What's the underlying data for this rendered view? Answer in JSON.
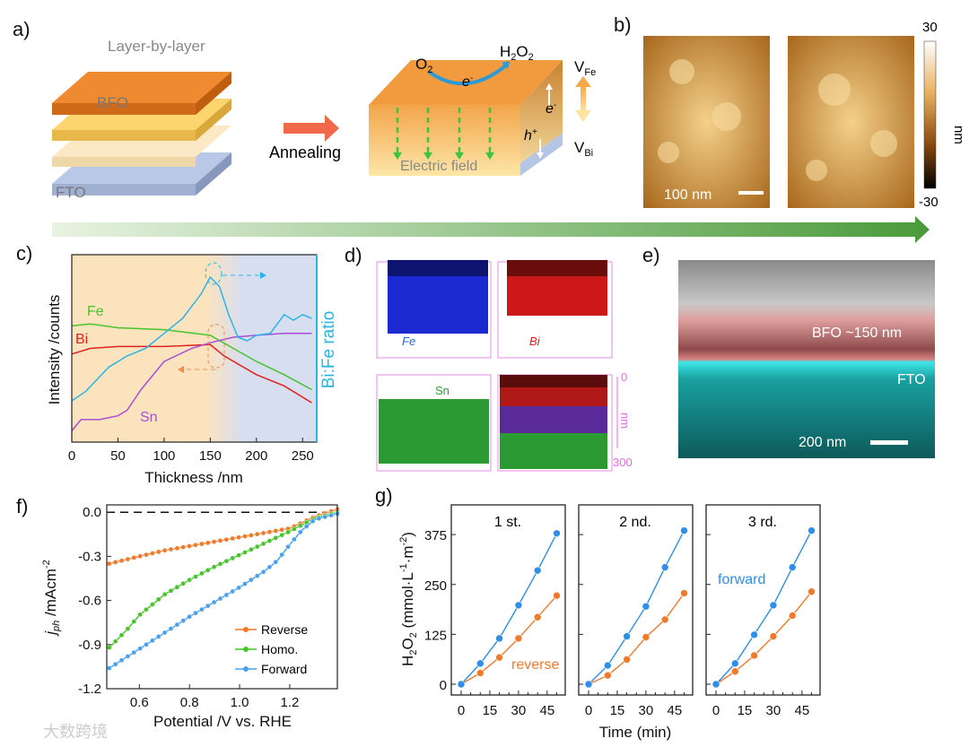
{
  "panels": {
    "a": {
      "label": "a)",
      "title": "Layer-by-layer",
      "bfo": "BFO",
      "fto": "FTO",
      "arrow_label": "Annealing",
      "o2": "O",
      "o2_sub": "2",
      "h2o2": "H",
      "h2o2_sub1": "2",
      "h2o2_mid": "O",
      "h2o2_sub2": "2",
      "electron": "e",
      "electron_sup": "-",
      "hole": "h",
      "hole_sup": "+",
      "field": "Electric field",
      "vfe": "V",
      "vfe_sub": "Fe",
      "vbi": "V",
      "vbi_sub": "Bi"
    },
    "b": {
      "label": "b)",
      "scale": "100 nm",
      "cbar_max": "30",
      "cbar_min": "-30",
      "cbar_unit": "nm"
    },
    "d": {
      "label": "d)",
      "fe": "Fe",
      "bi": "Bi",
      "sn": "Sn",
      "depth_top": "0",
      "depth_bottom": "300",
      "depth_unit": "nm"
    },
    "e": {
      "label": "e)",
      "bfo": "BFO  ~150 nm",
      "fto": "FTO",
      "scale": "200 nm"
    },
    "c": {
      "label": "c)"
    },
    "f": {
      "label": "f)"
    },
    "g": {
      "label": "g)"
    }
  },
  "watermark": "大数跨境",
  "colors": {
    "orange": "#f07a2a",
    "green": "#47c42c",
    "blue": "#2f8ee8",
    "cyan": "#29b4e6",
    "red": "#e0211c",
    "purple": "#a94fd6",
    "magenta": "#e36ce6"
  },
  "chart_data": [
    {
      "id": "c",
      "type": "line",
      "xlabel": "Thickness /nm",
      "ylabel": "Intensity /counts",
      "y2label": "Bi:Fe ratio",
      "xlim": [
        0,
        260
      ],
      "xticks": [
        "0",
        "50",
        "100",
        "150",
        "200",
        "250"
      ],
      "note": "y in arbitrary log units (0-1 of axis)",
      "series": [
        {
          "name": "Fe",
          "x": [
            0,
            20,
            50,
            100,
            150,
            175,
            200,
            230,
            260
          ],
          "y": [
            0.62,
            0.63,
            0.61,
            0.6,
            0.57,
            0.5,
            0.43,
            0.36,
            0.28
          ]
        },
        {
          "name": "Bi",
          "x": [
            0,
            20,
            50,
            100,
            150,
            165,
            200,
            230,
            260
          ],
          "y": [
            0.47,
            0.5,
            0.51,
            0.51,
            0.52,
            0.46,
            0.36,
            0.3,
            0.21
          ]
        },
        {
          "name": "Sn",
          "x": [
            0,
            10,
            30,
            50,
            60,
            75,
            100,
            130,
            150,
            175,
            200,
            230,
            260
          ],
          "y": [
            0.06,
            0.12,
            0.12,
            0.14,
            0.17,
            0.28,
            0.43,
            0.5,
            0.53,
            0.56,
            0.57,
            0.58,
            0.58
          ]
        },
        {
          "name": "Bi:Fe ratio",
          "x": [
            0,
            15,
            40,
            60,
            80,
            100,
            120,
            140,
            150,
            160,
            170,
            180,
            190,
            200,
            215,
            230,
            240,
            250,
            260
          ],
          "y": [
            0.22,
            0.27,
            0.4,
            0.46,
            0.5,
            0.58,
            0.66,
            0.79,
            0.88,
            0.83,
            0.68,
            0.56,
            0.54,
            0.57,
            0.58,
            0.68,
            0.65,
            0.68,
            0.66
          ]
        }
      ]
    },
    {
      "id": "f",
      "type": "line",
      "xlabel": "Potential /V vs. RHE",
      "ylabel_main": "j",
      "ylabel_sub": "ph",
      "ylabel_rest": " /mAcm",
      "ylabel_sup": "-2",
      "xlim": [
        0.47,
        1.39
      ],
      "ylim": [
        -1.2,
        0.05
      ],
      "xticks": [
        "0.6",
        "0.8",
        "1.0",
        "1.2"
      ],
      "yticks": [
        "0.0",
        "-0.3",
        "-0.6",
        "-0.9",
        "-1.2"
      ],
      "series": [
        {
          "name": "Reverse",
          "x": [
            0.48,
            0.6,
            0.7,
            0.8,
            0.9,
            1.0,
            1.1,
            1.2,
            1.3,
            1.39
          ],
          "y": [
            -0.35,
            -0.3,
            -0.26,
            -0.23,
            -0.2,
            -0.17,
            -0.14,
            -0.11,
            -0.03,
            0.02
          ]
        },
        {
          "name": "Homo.",
          "x": [
            0.48,
            0.55,
            0.6,
            0.7,
            0.8,
            0.9,
            1.0,
            1.1,
            1.2,
            1.3,
            1.39
          ],
          "y": [
            -0.92,
            -0.8,
            -0.7,
            -0.56,
            -0.46,
            -0.37,
            -0.29,
            -0.21,
            -0.13,
            -0.04,
            0.0
          ]
        },
        {
          "name": "Forward",
          "x": [
            0.48,
            0.6,
            0.7,
            0.8,
            0.9,
            1.0,
            1.1,
            1.15,
            1.2,
            1.25,
            1.3,
            1.39
          ],
          "y": [
            -1.06,
            -0.93,
            -0.82,
            -0.71,
            -0.61,
            -0.51,
            -0.4,
            -0.33,
            -0.22,
            -0.12,
            -0.05,
            -0.01
          ]
        }
      ]
    },
    {
      "id": "g",
      "type": "line",
      "xlabel": "Time (min)",
      "ylabel_main": "H",
      "ylabel_sub": "2",
      "ylabel_mid": "O",
      "ylabel_sub2": "2",
      "ylabel_rest": " (mmol·L",
      "ylabel_sup1": "-1",
      "ylabel_rest2": "·m",
      "ylabel_sup2": "-2",
      "ylabel_end": ")",
      "xlim": [
        -7,
        53
      ],
      "ylim": [
        -25,
        440
      ],
      "xticks": [
        "0",
        "15",
        "30",
        "45"
      ],
      "yticks": [
        "0",
        "125",
        "250",
        "375"
      ],
      "annotations": {
        "reverse": "reverse",
        "forward": "forward"
      },
      "subplots": [
        {
          "title": "1 st.",
          "x": [
            0,
            10,
            20,
            30,
            40,
            50
          ],
          "forward": [
            0,
            52,
            115,
            198,
            285,
            378
          ],
          "reverse": [
            0,
            28,
            67,
            115,
            168,
            222
          ]
        },
        {
          "title": "2 nd.",
          "x": [
            0,
            10,
            20,
            30,
            40,
            50
          ],
          "forward": [
            0,
            47,
            120,
            195,
            293,
            385
          ],
          "reverse": [
            0,
            22,
            62,
            118,
            162,
            228
          ]
        },
        {
          "title": "3 rd.",
          "x": [
            0,
            10,
            20,
            30,
            40,
            50
          ],
          "forward": [
            0,
            52,
            124,
            198,
            293,
            385
          ],
          "reverse": [
            0,
            32,
            72,
            120,
            172,
            232
          ]
        }
      ]
    }
  ]
}
